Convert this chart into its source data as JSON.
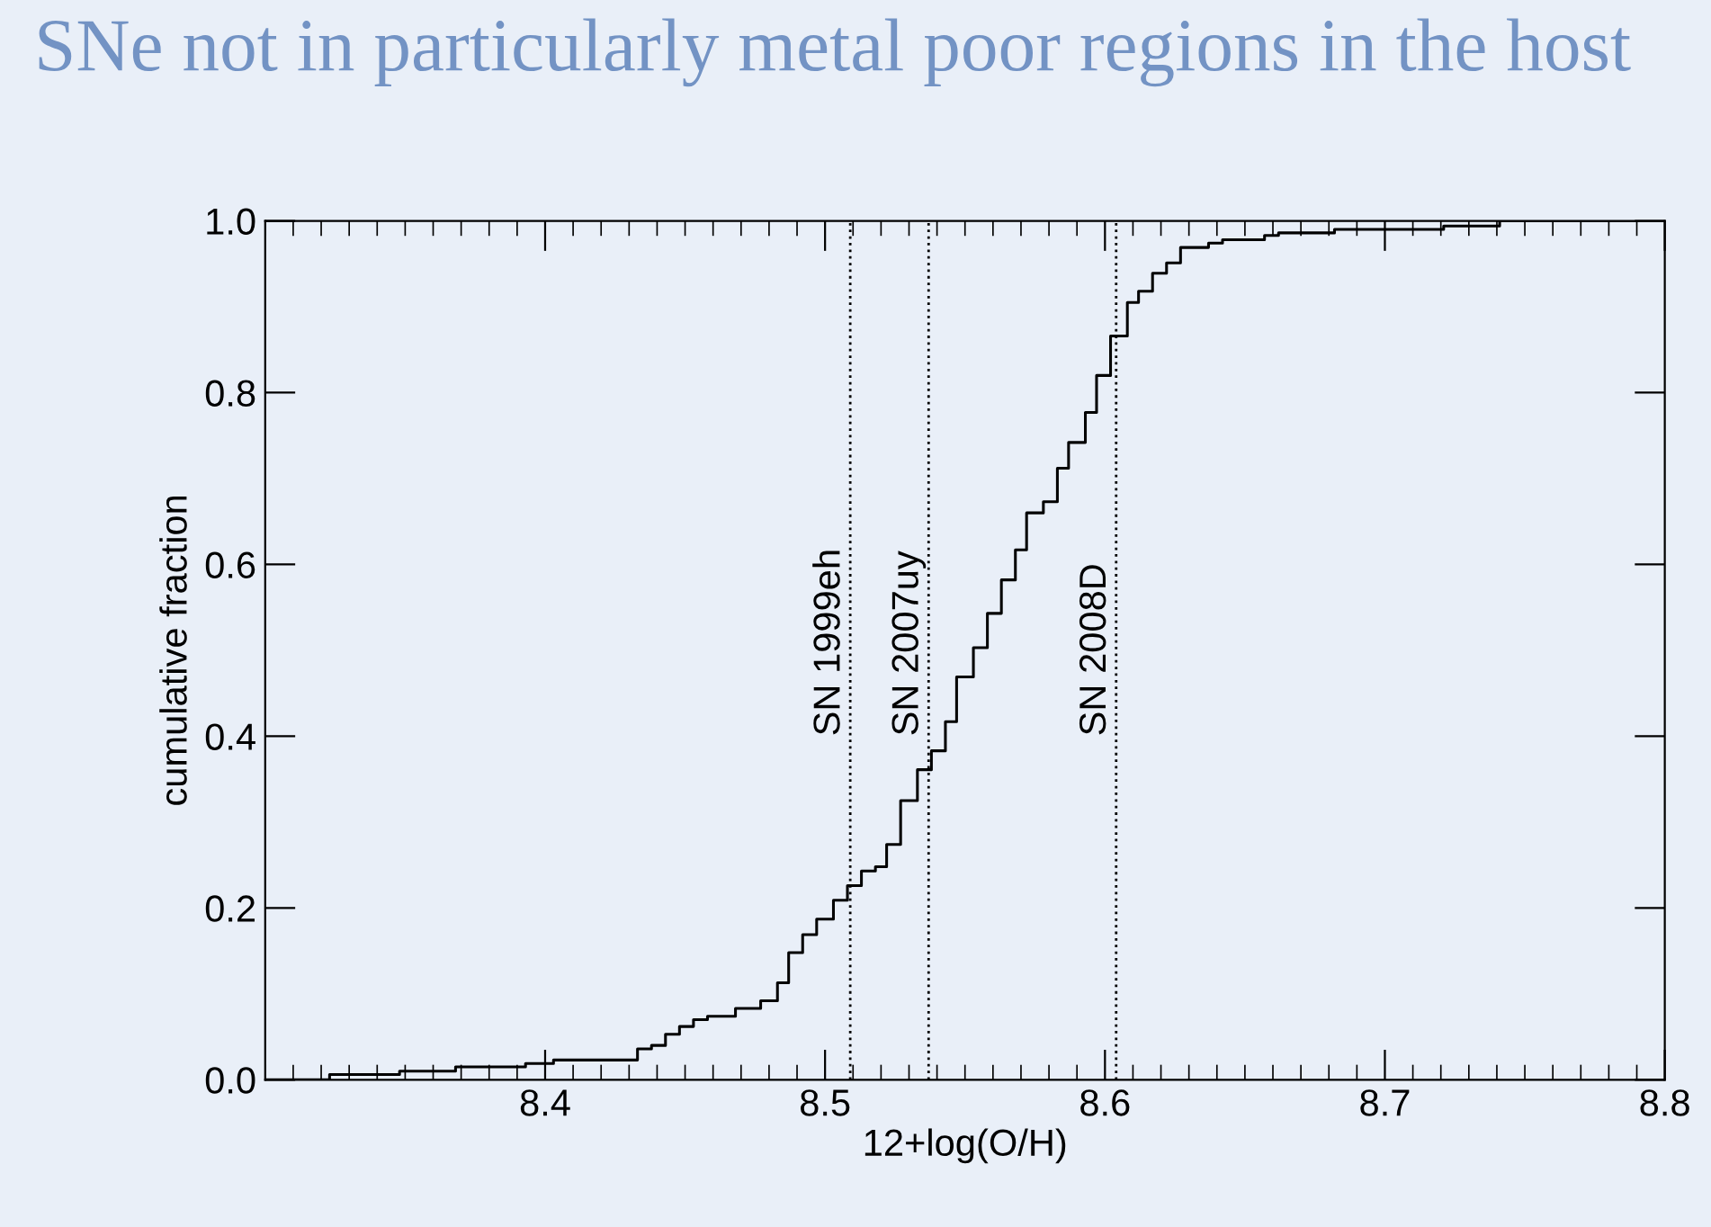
{
  "chart_data": {
    "type": "step",
    "title": "SNe not in particularly metal poor regions in the host",
    "xlabel": "12+log(O/H)",
    "ylabel": "cumulative fraction",
    "x": [
      8.3,
      8.323,
      8.348,
      8.368,
      8.393,
      8.403,
      8.433,
      8.438,
      8.443,
      8.448,
      8.453,
      8.458,
      8.468,
      8.477,
      8.483,
      8.487,
      8.492,
      8.497,
      8.503,
      8.508,
      8.513,
      8.518,
      8.522,
      8.527,
      8.533,
      8.538,
      8.543,
      8.547,
      8.553,
      8.558,
      8.563,
      8.568,
      8.572,
      8.578,
      8.583,
      8.587,
      8.593,
      8.597,
      8.602,
      8.608,
      8.612,
      8.617,
      8.622,
      8.627,
      8.637,
      8.642,
      8.657,
      8.662,
      8.682,
      8.721,
      8.741,
      8.8
    ],
    "series": [
      {
        "color": "#000000",
        "values": [
          0.0,
          0.006,
          0.01,
          0.015,
          0.019,
          0.023,
          0.036,
          0.04,
          0.053,
          0.062,
          0.07,
          0.074,
          0.083,
          0.092,
          0.113,
          0.148,
          0.169,
          0.187,
          0.209,
          0.226,
          0.243,
          0.248,
          0.274,
          0.325,
          0.361,
          0.383,
          0.417,
          0.469,
          0.503,
          0.543,
          0.582,
          0.617,
          0.66,
          0.673,
          0.712,
          0.742,
          0.777,
          0.82,
          0.866,
          0.905,
          0.918,
          0.939,
          0.951,
          0.969,
          0.974,
          0.978,
          0.983,
          0.986,
          0.99,
          0.994,
          1.0,
          1.0
        ]
      }
    ],
    "xlim": [
      8.3,
      8.8
    ],
    "xticks": [
      8.4,
      8.5,
      8.6,
      8.7,
      8.8
    ],
    "ylim": [
      0.0,
      1.0
    ],
    "yticks": [
      {
        "value": 0.0,
        "label": "0.0"
      },
      0.2,
      0.4,
      0.6,
      0.8,
      {
        "value": 1.0,
        "label": "1.0"
      }
    ],
    "ref_lines": [
      {
        "axis": "x",
        "value": 8.509,
        "label": "SN 1999eh",
        "color": "#000000",
        "line_style": "dotted"
      },
      {
        "axis": "x",
        "value": 8.537,
        "label": "SN 2007uy",
        "color": "#000000",
        "line_style": "dotted"
      },
      {
        "axis": "x",
        "value": 8.604,
        "label": "SN 2008D",
        "color": "#000000",
        "line_style": "dotted"
      }
    ],
    "grid": false,
    "legend": false
  }
}
